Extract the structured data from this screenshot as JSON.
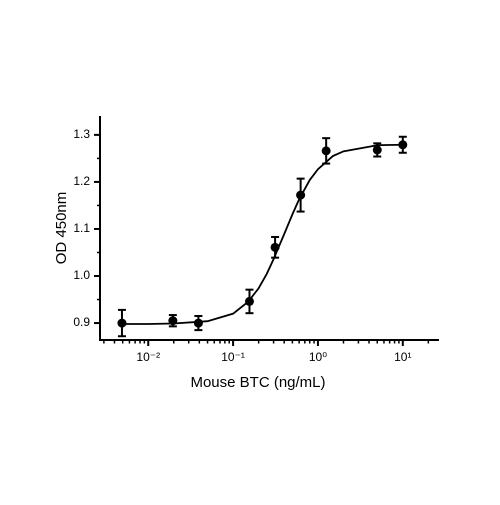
{
  "chart_data": {
    "type": "scatter",
    "x_label": "Mouse BTC (ng/mL)",
    "y_label": "OD 450nm",
    "x_scale": "log",
    "color": "#000000",
    "series": [
      {
        "x": [
          0.0049,
          0.0195,
          0.039,
          0.156,
          0.3125,
          0.625,
          1.25,
          5,
          10
        ],
        "values": [
          0.9,
          0.905,
          0.9,
          0.946,
          1.061,
          1.172,
          1.266,
          1.268,
          1.279
        ],
        "errors": [
          0.028,
          0.012,
          0.015,
          0.025,
          0.022,
          0.035,
          0.027,
          0.014,
          0.017
        ]
      }
    ],
    "curve": {
      "x": [
        0.005,
        0.01,
        0.02,
        0.05,
        0.1,
        0.15,
        0.2,
        0.25,
        0.3,
        0.4,
        0.5,
        0.6,
        0.8,
        1,
        1.5,
        2,
        5,
        10
      ],
      "values": [
        0.898,
        0.898,
        0.899,
        0.904,
        0.92,
        0.945,
        0.974,
        1.005,
        1.036,
        1.089,
        1.131,
        1.163,
        1.204,
        1.227,
        1.255,
        1.265,
        1.278,
        1.279
      ]
    },
    "xlim": [
      0.0027,
      26
    ],
    "ylim": [
      0.864,
      1.338
    ],
    "xticks": [
      {
        "value": 0.01,
        "label": "10⁻²"
      },
      {
        "value": 0.1,
        "label": "10⁻¹"
      },
      {
        "value": 1,
        "label": "10⁰"
      },
      {
        "value": 10,
        "label": "10¹"
      }
    ],
    "xminorticks": [
      0.003,
      0.004,
      0.005,
      0.006,
      0.007,
      0.008,
      0.009,
      0.02,
      0.03,
      0.04,
      0.05,
      0.06,
      0.07,
      0.08,
      0.09,
      0.2,
      0.3,
      0.4,
      0.5,
      0.6,
      0.7,
      0.8,
      0.9,
      2,
      3,
      4,
      5,
      6,
      7,
      8,
      9,
      20
    ],
    "yticks": [
      0.9,
      {
        "value": 1.0,
        "label": "1.0"
      },
      1.1,
      1.2,
      1.3
    ],
    "yminorticks": [
      0.95,
      1.05,
      1.15,
      1.25
    ]
  }
}
